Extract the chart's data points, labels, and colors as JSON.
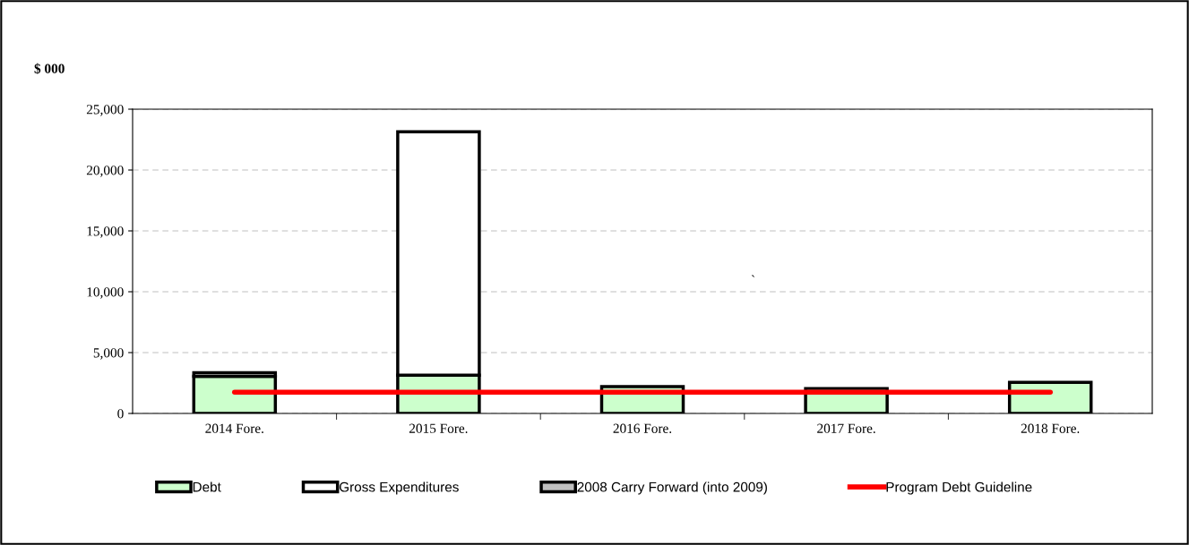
{
  "chart_data": {
    "type": "bar",
    "stacked": true,
    "ylabel": "$ 000",
    "categories": [
      "2014 Fore.",
      "2015 Fore.",
      "2016 Fore.",
      "2017 Fore.",
      "2018 Fore."
    ],
    "series": [
      {
        "name": "Debt",
        "color": "#ccffcc",
        "values": [
          3050,
          3150,
          2200,
          2050,
          2550
        ]
      },
      {
        "name": "Gross Expenditures",
        "color": "#ffffff",
        "values": [
          300,
          20000,
          0,
          0,
          0
        ]
      },
      {
        "name": "2008 Carry Forward (into 2009)",
        "color": "#c0c0c0",
        "values": [
          0,
          0,
          0,
          0,
          0
        ]
      },
      {
        "name": "Program Debt Guideline",
        "type": "line",
        "color": "#ff0000",
        "values": [
          1750,
          1750,
          1750,
          1750,
          1750
        ]
      }
    ],
    "ylim": [
      0,
      25000
    ],
    "yticks": [
      {
        "value": 0,
        "label": "0"
      },
      {
        "value": 5000,
        "label": "5,000"
      },
      {
        "value": 10000,
        "label": "10,000"
      },
      {
        "value": 15000,
        "label": "15,000"
      },
      {
        "value": 20000,
        "label": "20,000"
      },
      {
        "value": 25000,
        "label": "25,000"
      }
    ],
    "grid": "y",
    "legend": "bottom",
    "marker": "none",
    "line_style": "solid",
    "annotations": [
      "`"
    ]
  }
}
